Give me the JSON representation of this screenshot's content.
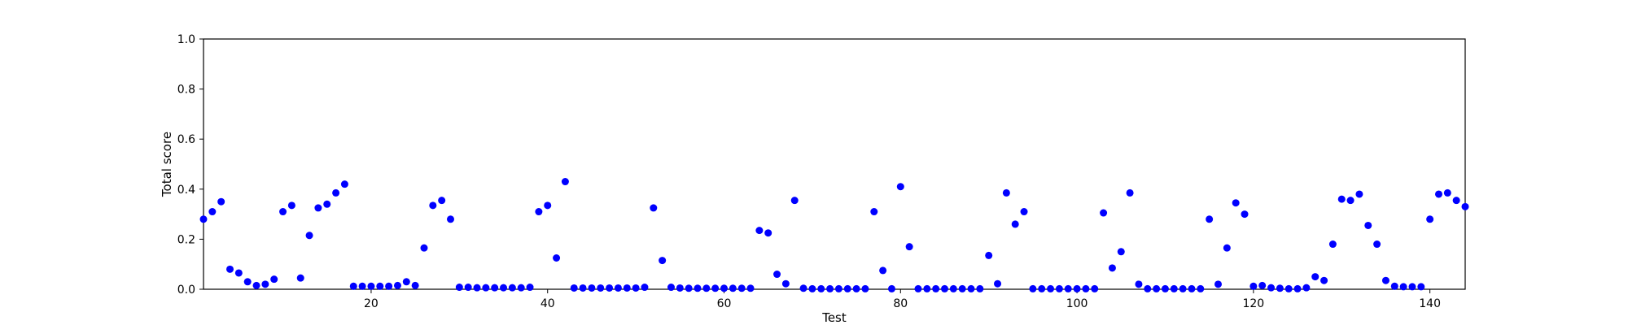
{
  "chart_data": {
    "type": "scatter",
    "title": "",
    "xlabel": "Test",
    "ylabel": "Total score",
    "xlim": [
      1,
      144
    ],
    "ylim": [
      0,
      1.0
    ],
    "x_ticks": [
      20,
      40,
      60,
      80,
      100,
      120,
      140
    ],
    "y_ticks": [
      "0.0",
      "0.2",
      "0.4",
      "0.6",
      "0.8",
      "1.0"
    ],
    "grid": false,
    "marker_color": "#0000ff",
    "series": [
      {
        "x": [
          1,
          2,
          3,
          4,
          5,
          6,
          7,
          8,
          9,
          10,
          11,
          12,
          13,
          14,
          15,
          16,
          17,
          18,
          19,
          20,
          21,
          22,
          23,
          24,
          25,
          26,
          27,
          28,
          29,
          30,
          31,
          32,
          33,
          34,
          35,
          36,
          37,
          38,
          39,
          40,
          41,
          42,
          43,
          44,
          45,
          46,
          47,
          48,
          49,
          50,
          51,
          52,
          53,
          54,
          55,
          56,
          57,
          58,
          59,
          60,
          61,
          62,
          63,
          64,
          65,
          66,
          67,
          68,
          69,
          70,
          71,
          72,
          73,
          74,
          75,
          76,
          77,
          78,
          79,
          80,
          81,
          82,
          83,
          84,
          85,
          86,
          87,
          88,
          89,
          90,
          91,
          92,
          93,
          94,
          95,
          96,
          97,
          98,
          99,
          100,
          101,
          102,
          103,
          104,
          105,
          106,
          107,
          108,
          109,
          110,
          111,
          112,
          113,
          114,
          115,
          116,
          117,
          118,
          119,
          120,
          121,
          122,
          123,
          124,
          125,
          126,
          127,
          128,
          129,
          130,
          131,
          132,
          133,
          134,
          135,
          136,
          137,
          138,
          139,
          140,
          141,
          142,
          143,
          144
        ],
        "y": [
          0.28,
          0.31,
          0.35,
          0.08,
          0.065,
          0.03,
          0.015,
          0.02,
          0.04,
          0.31,
          0.335,
          0.045,
          0.215,
          0.325,
          0.34,
          0.385,
          0.42,
          0.012,
          0.012,
          0.012,
          0.012,
          0.012,
          0.015,
          0.03,
          0.015,
          0.165,
          0.335,
          0.355,
          0.28,
          0.008,
          0.008,
          0.006,
          0.006,
          0.006,
          0.006,
          0.006,
          0.006,
          0.008,
          0.31,
          0.335,
          0.125,
          0.43,
          0.005,
          0.005,
          0.005,
          0.005,
          0.005,
          0.005,
          0.005,
          0.005,
          0.008,
          0.325,
          0.115,
          0.008,
          0.005,
          0.004,
          0.004,
          0.004,
          0.004,
          0.004,
          0.004,
          0.004,
          0.004,
          0.235,
          0.225,
          0.06,
          0.022,
          0.355,
          0.004,
          0.002,
          0.002,
          0.002,
          0.002,
          0.002,
          0.002,
          0.002,
          0.31,
          0.075,
          0.002,
          0.41,
          0.17,
          0.002,
          0.002,
          0.002,
          0.002,
          0.002,
          0.002,
          0.002,
          0.002,
          0.135,
          0.022,
          0.385,
          0.26,
          0.31,
          0.002,
          0.002,
          0.002,
          0.002,
          0.002,
          0.002,
          0.002,
          0.002,
          0.305,
          0.085,
          0.15,
          0.385,
          0.02,
          0.002,
          0.002,
          0.002,
          0.002,
          0.002,
          0.002,
          0.002,
          0.28,
          0.02,
          0.165,
          0.345,
          0.3,
          0.012,
          0.015,
          0.006,
          0.004,
          0.002,
          0.002,
          0.006,
          0.05,
          0.035,
          0.18,
          0.36,
          0.355,
          0.38,
          0.255,
          0.18,
          0.035,
          0.012,
          0.01,
          0.01,
          0.01,
          0.28,
          0.38,
          0.385,
          0.355,
          0.33
        ]
      }
    ]
  }
}
